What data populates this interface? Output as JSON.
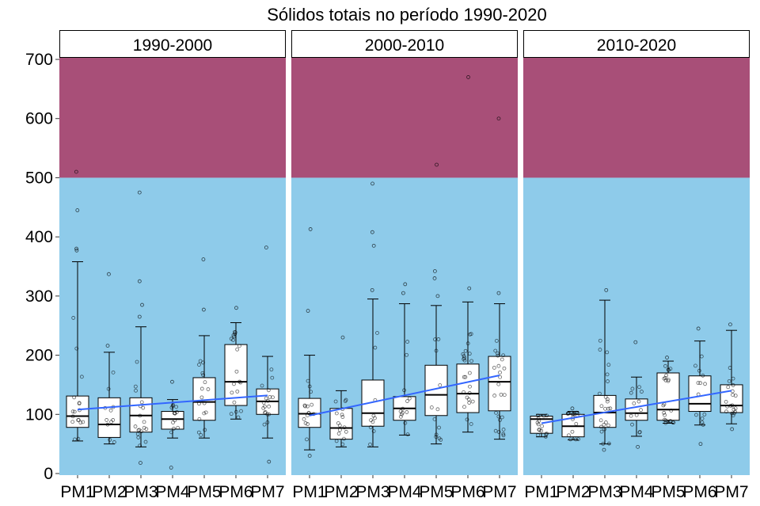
{
  "chart_data": {
    "type": "box",
    "title": "Sólidos totais no período 1990-2020",
    "xlabel": "",
    "ylabel": "",
    "ylim": [
      0,
      700
    ],
    "yticks": [
      0,
      100,
      200,
      300,
      400,
      500,
      600,
      700
    ],
    "categories": [
      "PM1",
      "PM2",
      "PM3",
      "PM4",
      "PM5",
      "PM6",
      "PM7"
    ],
    "background_bands": [
      {
        "from": 0,
        "to": 500,
        "color": "#8ecbea"
      },
      {
        "from": 500,
        "to": 700,
        "color": "#a84f78"
      }
    ],
    "colors": {
      "box_fill": "#ffffff",
      "box_line": "#000000",
      "trend_line": "#3366ff",
      "points": "#000000"
    },
    "panels": [
      {
        "strip": "1990-2000",
        "boxes": [
          {
            "category": "PM1",
            "whisker_low": 55,
            "q1": 78,
            "median": 97,
            "q3": 131,
            "whisker_high": 358,
            "outliers": [
              380,
              377,
              445,
              510
            ]
          },
          {
            "category": "PM2",
            "whisker_low": 50,
            "q1": 61,
            "median": 83,
            "q3": 128,
            "whisker_high": 205,
            "outliers": [
              216,
              337
            ]
          },
          {
            "category": "PM3",
            "whisker_low": 45,
            "q1": 70,
            "median": 98,
            "q3": 128,
            "whisker_high": 248,
            "outliers": [
              18,
              265,
              285,
              325,
              475
            ]
          },
          {
            "category": "PM4",
            "whisker_low": 60,
            "q1": 75,
            "median": 92,
            "q3": 105,
            "whisker_high": 125,
            "outliers": [
              10,
              155
            ]
          },
          {
            "category": "PM5",
            "whisker_low": 60,
            "q1": 90,
            "median": 121,
            "q3": 162,
            "whisker_high": 233,
            "outliers": [
              277,
              362
            ]
          },
          {
            "category": "PM6",
            "whisker_low": 92,
            "q1": 115,
            "median": 155,
            "q3": 218,
            "whisker_high": 255,
            "outliers": [
              280
            ]
          },
          {
            "category": "PM7",
            "whisker_low": 60,
            "q1": 100,
            "median": 122,
            "q3": 143,
            "whisker_high": 198,
            "outliers": [
              20,
              382
            ]
          }
        ],
        "trend": {
          "x": [
            "PM1",
            "PM7"
          ],
          "y": [
            108,
            132
          ]
        }
      },
      {
        "strip": "2000-2010",
        "boxes": [
          {
            "category": "PM1",
            "whisker_low": 40,
            "q1": 78,
            "median": 101,
            "q3": 127,
            "whisker_high": 200,
            "outliers": [
              30,
              275,
              413
            ]
          },
          {
            "category": "PM2",
            "whisker_low": 45,
            "q1": 58,
            "median": 77,
            "q3": 110,
            "whisker_high": 140,
            "outliers": [
              230
            ]
          },
          {
            "category": "PM3",
            "whisker_low": 45,
            "q1": 80,
            "median": 102,
            "q3": 158,
            "whisker_high": 295,
            "outliers": [
              310,
              385,
              408,
              490
            ]
          },
          {
            "category": "PM4",
            "whisker_low": 65,
            "q1": 90,
            "median": 110,
            "q3": 130,
            "whisker_high": 287,
            "outliers": [
              305,
              320
            ]
          },
          {
            "category": "PM5",
            "whisker_low": 50,
            "q1": 98,
            "median": 133,
            "q3": 183,
            "whisker_high": 284,
            "outliers": [
              300,
              330,
              342,
              522
            ]
          },
          {
            "category": "PM6",
            "whisker_low": 70,
            "q1": 103,
            "median": 135,
            "q3": 185,
            "whisker_high": 290,
            "outliers": [
              313,
              670
            ]
          },
          {
            "category": "PM7",
            "whisker_low": 58,
            "q1": 106,
            "median": 155,
            "q3": 198,
            "whisker_high": 287,
            "outliers": [
              305,
              600
            ]
          }
        ],
        "trend": {
          "x": [
            "PM1",
            "PM7"
          ],
          "y": [
            98,
            166
          ]
        }
      },
      {
        "strip": "2010-2020",
        "boxes": [
          {
            "category": "PM1",
            "whisker_low": 62,
            "q1": 68,
            "median": 92,
            "q3": 97,
            "whisker_high": 100,
            "outliers": []
          },
          {
            "category": "PM2",
            "whisker_low": 57,
            "q1": 62,
            "median": 80,
            "q3": 100,
            "whisker_high": 105,
            "outliers": [
              110
            ]
          },
          {
            "category": "PM3",
            "whisker_low": 50,
            "q1": 78,
            "median": 103,
            "q3": 132,
            "whisker_high": 293,
            "outliers": [
              40,
              310
            ]
          },
          {
            "category": "PM4",
            "whisker_low": 63,
            "q1": 90,
            "median": 102,
            "q3": 126,
            "whisker_high": 163,
            "outliers": [
              45,
              222
            ]
          },
          {
            "category": "PM5",
            "whisker_low": 85,
            "q1": 90,
            "median": 108,
            "q3": 170,
            "whisker_high": 190,
            "outliers": [
              196
            ]
          },
          {
            "category": "PM6",
            "whisker_low": 82,
            "q1": 105,
            "median": 118,
            "q3": 165,
            "whisker_high": 224,
            "outliers": [
              50,
              245
            ]
          },
          {
            "category": "PM7",
            "whisker_low": 84,
            "q1": 103,
            "median": 115,
            "q3": 150,
            "whisker_high": 242,
            "outliers": [
              75,
              252
            ]
          }
        ],
        "trend": {
          "x": [
            "PM1",
            "PM7"
          ],
          "y": [
            85,
            140
          ]
        }
      }
    ]
  }
}
